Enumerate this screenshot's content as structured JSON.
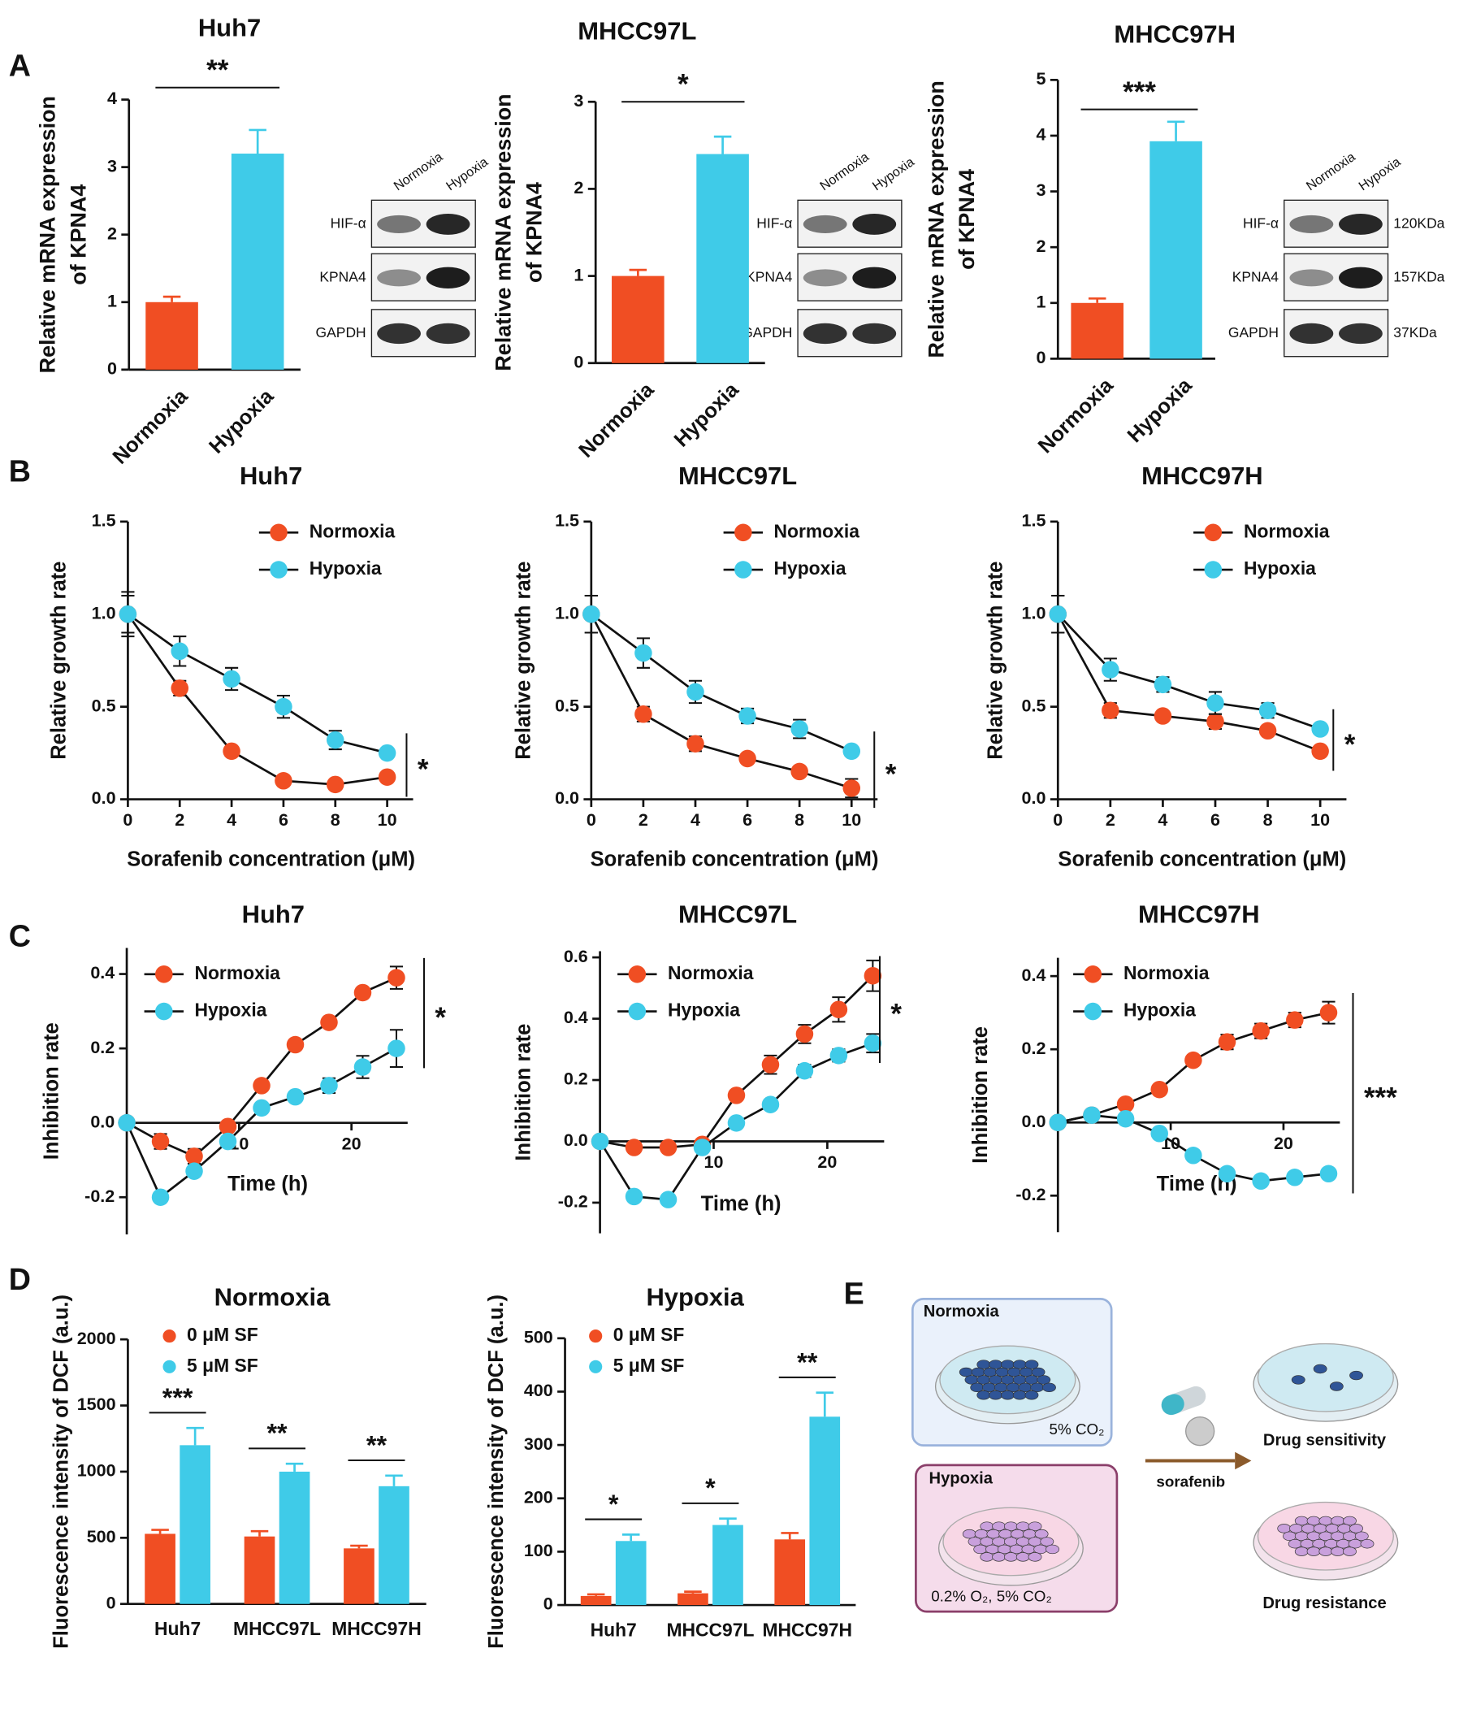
{
  "panels": [
    "A",
    "B",
    "C",
    "D",
    "E"
  ],
  "chart_data": [
    {
      "type": "bar",
      "title": "Huh7",
      "y_label": [
        "Relative mRNA expression",
        "of KPNA4"
      ],
      "categories": [
        "Normoxia",
        "Hypoxia"
      ],
      "values": [
        1.0,
        3.2
      ],
      "errors": [
        0.08,
        0.35
      ],
      "colors": [
        "#f04e23",
        "#3fcbe8"
      ],
      "ylim": [
        0,
        4
      ],
      "yticks": [
        0,
        1,
        2,
        3,
        4
      ],
      "significance": "**"
    },
    {
      "type": "bar",
      "title": "MHCC97L",
      "y_label": [
        "Relative mRNA expression",
        "of KPNA4"
      ],
      "categories": [
        "Normoxia",
        "Hypoxia"
      ],
      "values": [
        1.0,
        2.4
      ],
      "errors": [
        0.07,
        0.2
      ],
      "colors": [
        "#f04e23",
        "#3fcbe8"
      ],
      "ylim": [
        0,
        3
      ],
      "yticks": [
        0,
        1,
        2,
        3
      ],
      "significance": "*"
    },
    {
      "type": "bar",
      "title": "MHCC97H",
      "y_label": [
        "Relative mRNA expression",
        "of KPNA4"
      ],
      "categories": [
        "Normoxia",
        "Hypoxia"
      ],
      "values": [
        1.0,
        3.9
      ],
      "errors": [
        0.08,
        0.35
      ],
      "colors": [
        "#f04e23",
        "#3fcbe8"
      ],
      "ylim": [
        0,
        5
      ],
      "yticks": [
        0,
        1,
        2,
        3,
        4,
        5
      ],
      "significance": "***"
    },
    {
      "type": "line",
      "title": "Huh7",
      "x_label": "Sorafenib concentration (μM)",
      "y_label": "Relative growth rate",
      "x": [
        0,
        2,
        4,
        6,
        8,
        10
      ],
      "xlim": [
        0,
        11
      ],
      "xticks": [
        0,
        2,
        4,
        6,
        8,
        10
      ],
      "ylim": [
        0,
        1.5
      ],
      "yticks": [
        {
          "value": 0,
          "label": "0.0"
        },
        0.5,
        {
          "value": 1,
          "label": "1.0"
        },
        1.5
      ],
      "significance": "*",
      "series": [
        {
          "name": "Normoxia",
          "color": "#f04e23",
          "values": [
            1.0,
            0.6,
            0.26,
            0.1,
            0.08,
            0.12
          ],
          "errors": [
            0.12,
            0.04,
            0.02,
            0.02,
            0.02,
            0.02
          ]
        },
        {
          "name": "Hypoxia",
          "color": "#3fcbe8",
          "values": [
            1.0,
            0.8,
            0.65,
            0.5,
            0.32,
            0.25
          ],
          "errors": [
            0.1,
            0.08,
            0.06,
            0.06,
            0.05,
            0.02
          ]
        }
      ]
    },
    {
      "type": "line",
      "title": "MHCC97L",
      "x_label": "Sorafenib concentration (μM)",
      "y_label": "Relative growth rate",
      "x": [
        0,
        2,
        4,
        6,
        8,
        10
      ],
      "xlim": [
        0,
        11
      ],
      "xticks": [
        0,
        2,
        4,
        6,
        8,
        10
      ],
      "ylim": [
        0,
        1.5
      ],
      "yticks": [
        {
          "value": 0,
          "label": "0.0"
        },
        0.5,
        {
          "value": 1,
          "label": "1.0"
        },
        1.5
      ],
      "significance": "*",
      "series": [
        {
          "name": "Normoxia",
          "color": "#f04e23",
          "values": [
            1.0,
            0.46,
            0.3,
            0.22,
            0.15,
            0.06
          ],
          "errors": [
            0.1,
            0.04,
            0.04,
            0.02,
            0.02,
            0.05
          ]
        },
        {
          "name": "Hypoxia",
          "color": "#3fcbe8",
          "values": [
            1.0,
            0.79,
            0.58,
            0.45,
            0.38,
            0.26
          ],
          "errors": [
            0.1,
            0.08,
            0.06,
            0.04,
            0.05,
            0.02
          ]
        }
      ]
    },
    {
      "type": "line",
      "title": "MHCC97H",
      "x_label": "Sorafenib concentration (μM)",
      "y_label": "Relative growth rate",
      "x": [
        0,
        2,
        4,
        6,
        8,
        10
      ],
      "xlim": [
        0,
        11
      ],
      "xticks": [
        0,
        2,
        4,
        6,
        8,
        10
      ],
      "ylim": [
        0,
        1.5
      ],
      "yticks": [
        {
          "value": 0,
          "label": "0.0"
        },
        0.5,
        {
          "value": 1,
          "label": "1.0"
        },
        1.5
      ],
      "significance": "*",
      "series": [
        {
          "name": "Normoxia",
          "color": "#f04e23",
          "values": [
            1.0,
            0.48,
            0.45,
            0.42,
            0.37,
            0.26
          ],
          "errors": [
            0.1,
            0.04,
            0.02,
            0.04,
            0.02,
            0.02
          ]
        },
        {
          "name": "Hypoxia",
          "color": "#3fcbe8",
          "values": [
            1.0,
            0.7,
            0.62,
            0.52,
            0.48,
            0.38
          ],
          "errors": [
            0.1,
            0.06,
            0.04,
            0.06,
            0.04,
            0.02
          ]
        }
      ]
    },
    {
      "type": "line",
      "title": "Huh7",
      "x_label": "Time (h)",
      "y_label": "Inhibition rate",
      "x": [
        0,
        3,
        6,
        9,
        12,
        15,
        18,
        21,
        24
      ],
      "xlim": [
        0,
        25
      ],
      "xticks": [
        10,
        20
      ],
      "ylim": [
        -0.3,
        0.47
      ],
      "yticks": [
        -0.2,
        {
          "value": 0,
          "label": "0.0"
        },
        0.2,
        0.4
      ],
      "significance": "*",
      "series": [
        {
          "name": "Normoxia",
          "color": "#f04e23",
          "values": [
            0,
            -0.05,
            -0.09,
            -0.01,
            0.1,
            0.21,
            0.27,
            0.35,
            0.39
          ],
          "errors": [
            0,
            0.02,
            0.02,
            0.01,
            0.01,
            0.01,
            0.01,
            0.01,
            0.03
          ]
        },
        {
          "name": "Hypoxia",
          "color": "#3fcbe8",
          "values": [
            0,
            -0.2,
            -0.13,
            -0.05,
            0.04,
            0.07,
            0.1,
            0.15,
            0.2
          ],
          "errors": [
            0,
            0.01,
            0.01,
            0.01,
            0.01,
            0.01,
            0.02,
            0.03,
            0.05
          ]
        }
      ]
    },
    {
      "type": "line",
      "title": "MHCC97L",
      "x_label": "Time (h)",
      "y_label": "Inhibition rate",
      "x": [
        0,
        3,
        6,
        9,
        12,
        15,
        18,
        21,
        24
      ],
      "xlim": [
        0,
        25
      ],
      "xticks": [
        10,
        20
      ],
      "ylim": [
        -0.3,
        0.62
      ],
      "yticks": [
        -0.2,
        {
          "value": 0,
          "label": "0.0"
        },
        0.2,
        0.4,
        0.6
      ],
      "significance": "*",
      "series": [
        {
          "name": "Normoxia",
          "color": "#f04e23",
          "values": [
            0,
            -0.02,
            -0.02,
            -0.01,
            0.15,
            0.25,
            0.35,
            0.43,
            0.54
          ],
          "errors": [
            0,
            0.01,
            0.01,
            0.01,
            0.01,
            0.03,
            0.03,
            0.04,
            0.05
          ]
        },
        {
          "name": "Hypoxia",
          "color": "#3fcbe8",
          "values": [
            0,
            -0.18,
            -0.19,
            -0.02,
            0.06,
            0.12,
            0.23,
            0.28,
            0.32
          ],
          "errors": [
            0,
            0.01,
            0.01,
            0.01,
            0.01,
            0.01,
            0.02,
            0.02,
            0.03
          ]
        }
      ]
    },
    {
      "type": "line",
      "title": "MHCC97H",
      "x_label": "Time (h)",
      "y_label": "Inhibition rate",
      "x": [
        0,
        3,
        6,
        9,
        12,
        15,
        18,
        21,
        24
      ],
      "xlim": [
        0,
        25
      ],
      "xticks": [
        10,
        20
      ],
      "ylim": [
        -0.3,
        0.45
      ],
      "yticks": [
        -0.2,
        {
          "value": 0,
          "label": "0.0"
        },
        0.2,
        0.4
      ],
      "significance": "***",
      "series": [
        {
          "name": "Normoxia",
          "color": "#f04e23",
          "values": [
            0,
            0.02,
            0.05,
            0.09,
            0.17,
            0.22,
            0.25,
            0.28,
            0.3
          ],
          "errors": [
            0,
            0.01,
            0.01,
            0.01,
            0.01,
            0.02,
            0.02,
            0.02,
            0.03
          ]
        },
        {
          "name": "Hypoxia",
          "color": "#3fcbe8",
          "values": [
            0,
            0.02,
            0.01,
            -0.03,
            -0.09,
            -0.14,
            -0.16,
            -0.15,
            -0.14
          ],
          "errors": [
            0,
            0.01,
            0.01,
            0.01,
            0.01,
            0.01,
            0.01,
            0.01,
            0.01
          ]
        }
      ]
    },
    {
      "type": "bar",
      "title": "Normoxia",
      "y_label": "Fluorescence intensity of DCF (a.u.)",
      "categories": [
        "Huh7",
        "MHCC97L",
        "MHCC97H"
      ],
      "ylim": [
        0,
        2000
      ],
      "yticks": [
        0,
        500,
        1000,
        1500,
        2000
      ],
      "significance": [
        "***",
        "**",
        "**"
      ],
      "series": [
        {
          "name": "0 μM SF",
          "color": "#f04e23",
          "values": [
            530,
            510,
            420
          ],
          "errors": [
            30,
            40,
            20
          ]
        },
        {
          "name": "5 μM SF",
          "color": "#3fcbe8",
          "values": [
            1200,
            1000,
            890
          ],
          "errors": [
            130,
            60,
            80
          ]
        }
      ]
    },
    {
      "type": "bar",
      "title": "Hypoxia",
      "y_label": "Fluorescence intensity of DCF (a.u.)",
      "categories": [
        "Huh7",
        "MHCC97L",
        "MHCC97H"
      ],
      "ylim": [
        0,
        500
      ],
      "yticks": [
        0,
        100,
        200,
        300,
        400,
        500
      ],
      "significance": [
        "*",
        "*",
        "**"
      ],
      "series": [
        {
          "name": "0 μM SF",
          "color": "#f04e23",
          "values": [
            17,
            22,
            123
          ],
          "errors": [
            3,
            3,
            12
          ]
        },
        {
          "name": "5 μM SF",
          "color": "#3fcbe8",
          "values": [
            120,
            150,
            353
          ],
          "errors": [
            12,
            12,
            45
          ]
        }
      ]
    }
  ],
  "blots": [
    {
      "lanes": [
        "Normoxia",
        "Hypoxia"
      ],
      "rows": [
        "HIF-α",
        "KPNA4",
        "GAPDH"
      ]
    },
    {
      "lanes": [
        "Normoxia",
        "Hypoxia"
      ],
      "rows": [
        "HIF-α",
        "KPNA4",
        "GAPDH"
      ]
    },
    {
      "lanes": [
        "Normoxia",
        "Hypoxia"
      ],
      "rows": [
        "HIF-α",
        "KPNA4",
        "GAPDH"
      ],
      "sizes": [
        "120KDa",
        "157KDa",
        "37KDa"
      ]
    }
  ],
  "diagram": {
    "normoxia": {
      "label": "Normoxia",
      "condition": "5% CO₂"
    },
    "hypoxia": {
      "label": "Hypoxia",
      "condition": "0.2% O₂,  5% CO₂"
    },
    "drug": "sorafenib",
    "outcomes": [
      "Drug sensitivity",
      "Drug resistance"
    ]
  }
}
